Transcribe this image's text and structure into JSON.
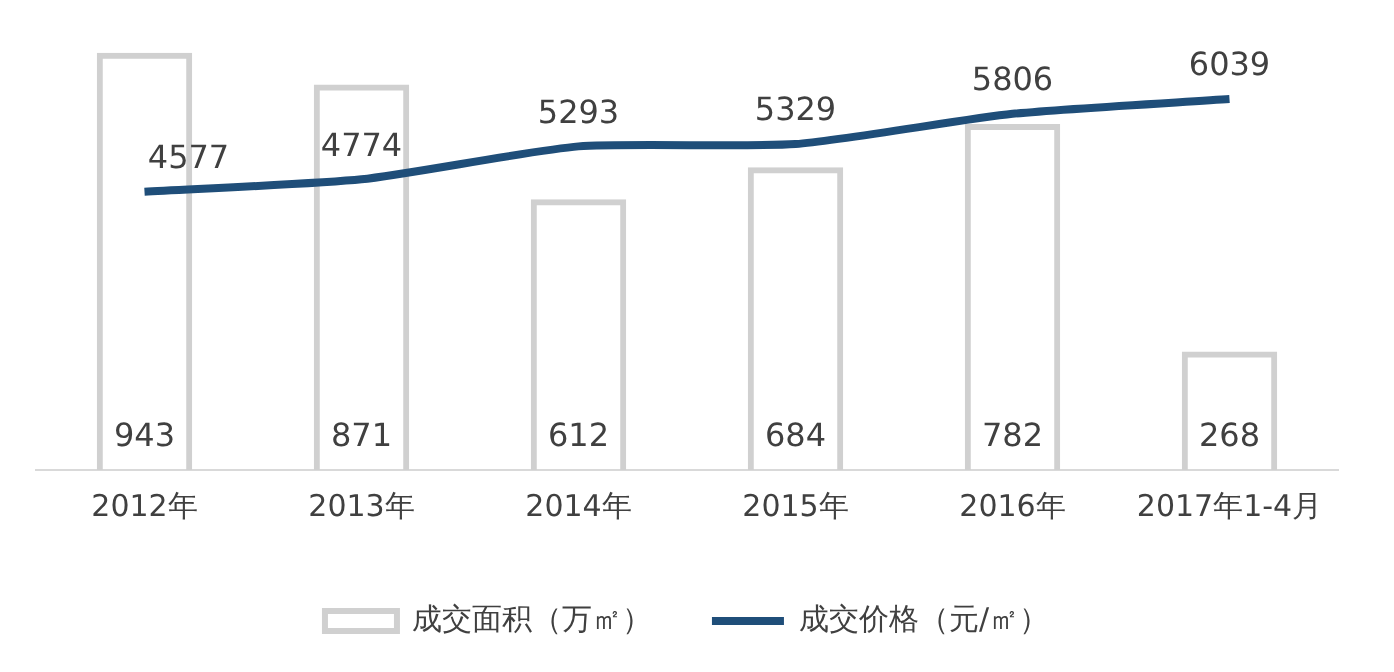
{
  "chart_data": {
    "type": "bar",
    "categories": [
      "2012年",
      "2013年",
      "2014年",
      "2015年",
      "2016年",
      "2017年1-4月"
    ],
    "series": [
      {
        "name": "成交面积（万㎡）",
        "color": "#d0d0d0",
        "values": [
          943,
          871,
          612,
          684,
          782,
          268
        ]
      },
      {
        "name": "成交价格（元/㎡）",
        "type": "line",
        "axis": "y2",
        "color": "#1f4e79",
        "values": [
          4577,
          4774,
          5293,
          5329,
          5806,
          6039
        ]
      }
    ],
    "data_labels": true,
    "legend": "bottom",
    "grid": false,
    "marker": "none"
  }
}
